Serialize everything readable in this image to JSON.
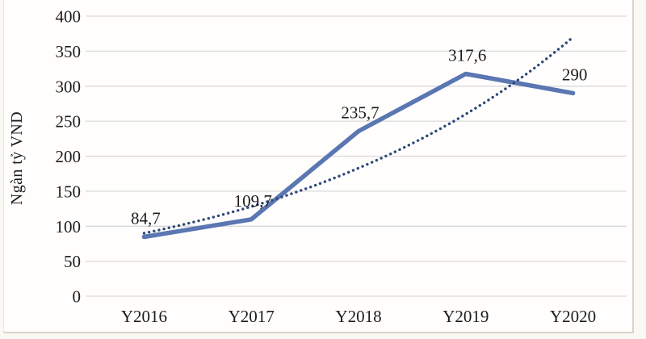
{
  "chart_data": {
    "type": "line",
    "title": "",
    "xlabel": "",
    "ylabel": "Ngàn tỷ VND",
    "categories": [
      "Y2016",
      "Y2017",
      "Y2018",
      "Y2019",
      "Y2020"
    ],
    "series": [
      {
        "name": "actual",
        "style": "solid",
        "color": "#5b77b2",
        "values": [
          84.7,
          109.7,
          235.7,
          317.6,
          290
        ],
        "point_labels": [
          "84,7",
          "109,7",
          "235,7",
          "317,6",
          "290"
        ]
      },
      {
        "name": "exponential-trendline",
        "style": "dotted",
        "color": "#2f4879",
        "values": [
          90,
          128,
          183,
          260,
          370
        ],
        "interpolation": "exponential"
      }
    ],
    "ylim": [
      0,
      400
    ],
    "ytick_step": 50,
    "y_ticks": [
      0,
      50,
      100,
      150,
      200,
      250,
      300,
      350,
      400
    ],
    "grid": "horizontal",
    "legend": "none",
    "colors": {
      "grid": "#d9d9d9",
      "text": "#1c1c1c",
      "frame_border": "#d9d5cb",
      "background": "#fffefd"
    }
  }
}
